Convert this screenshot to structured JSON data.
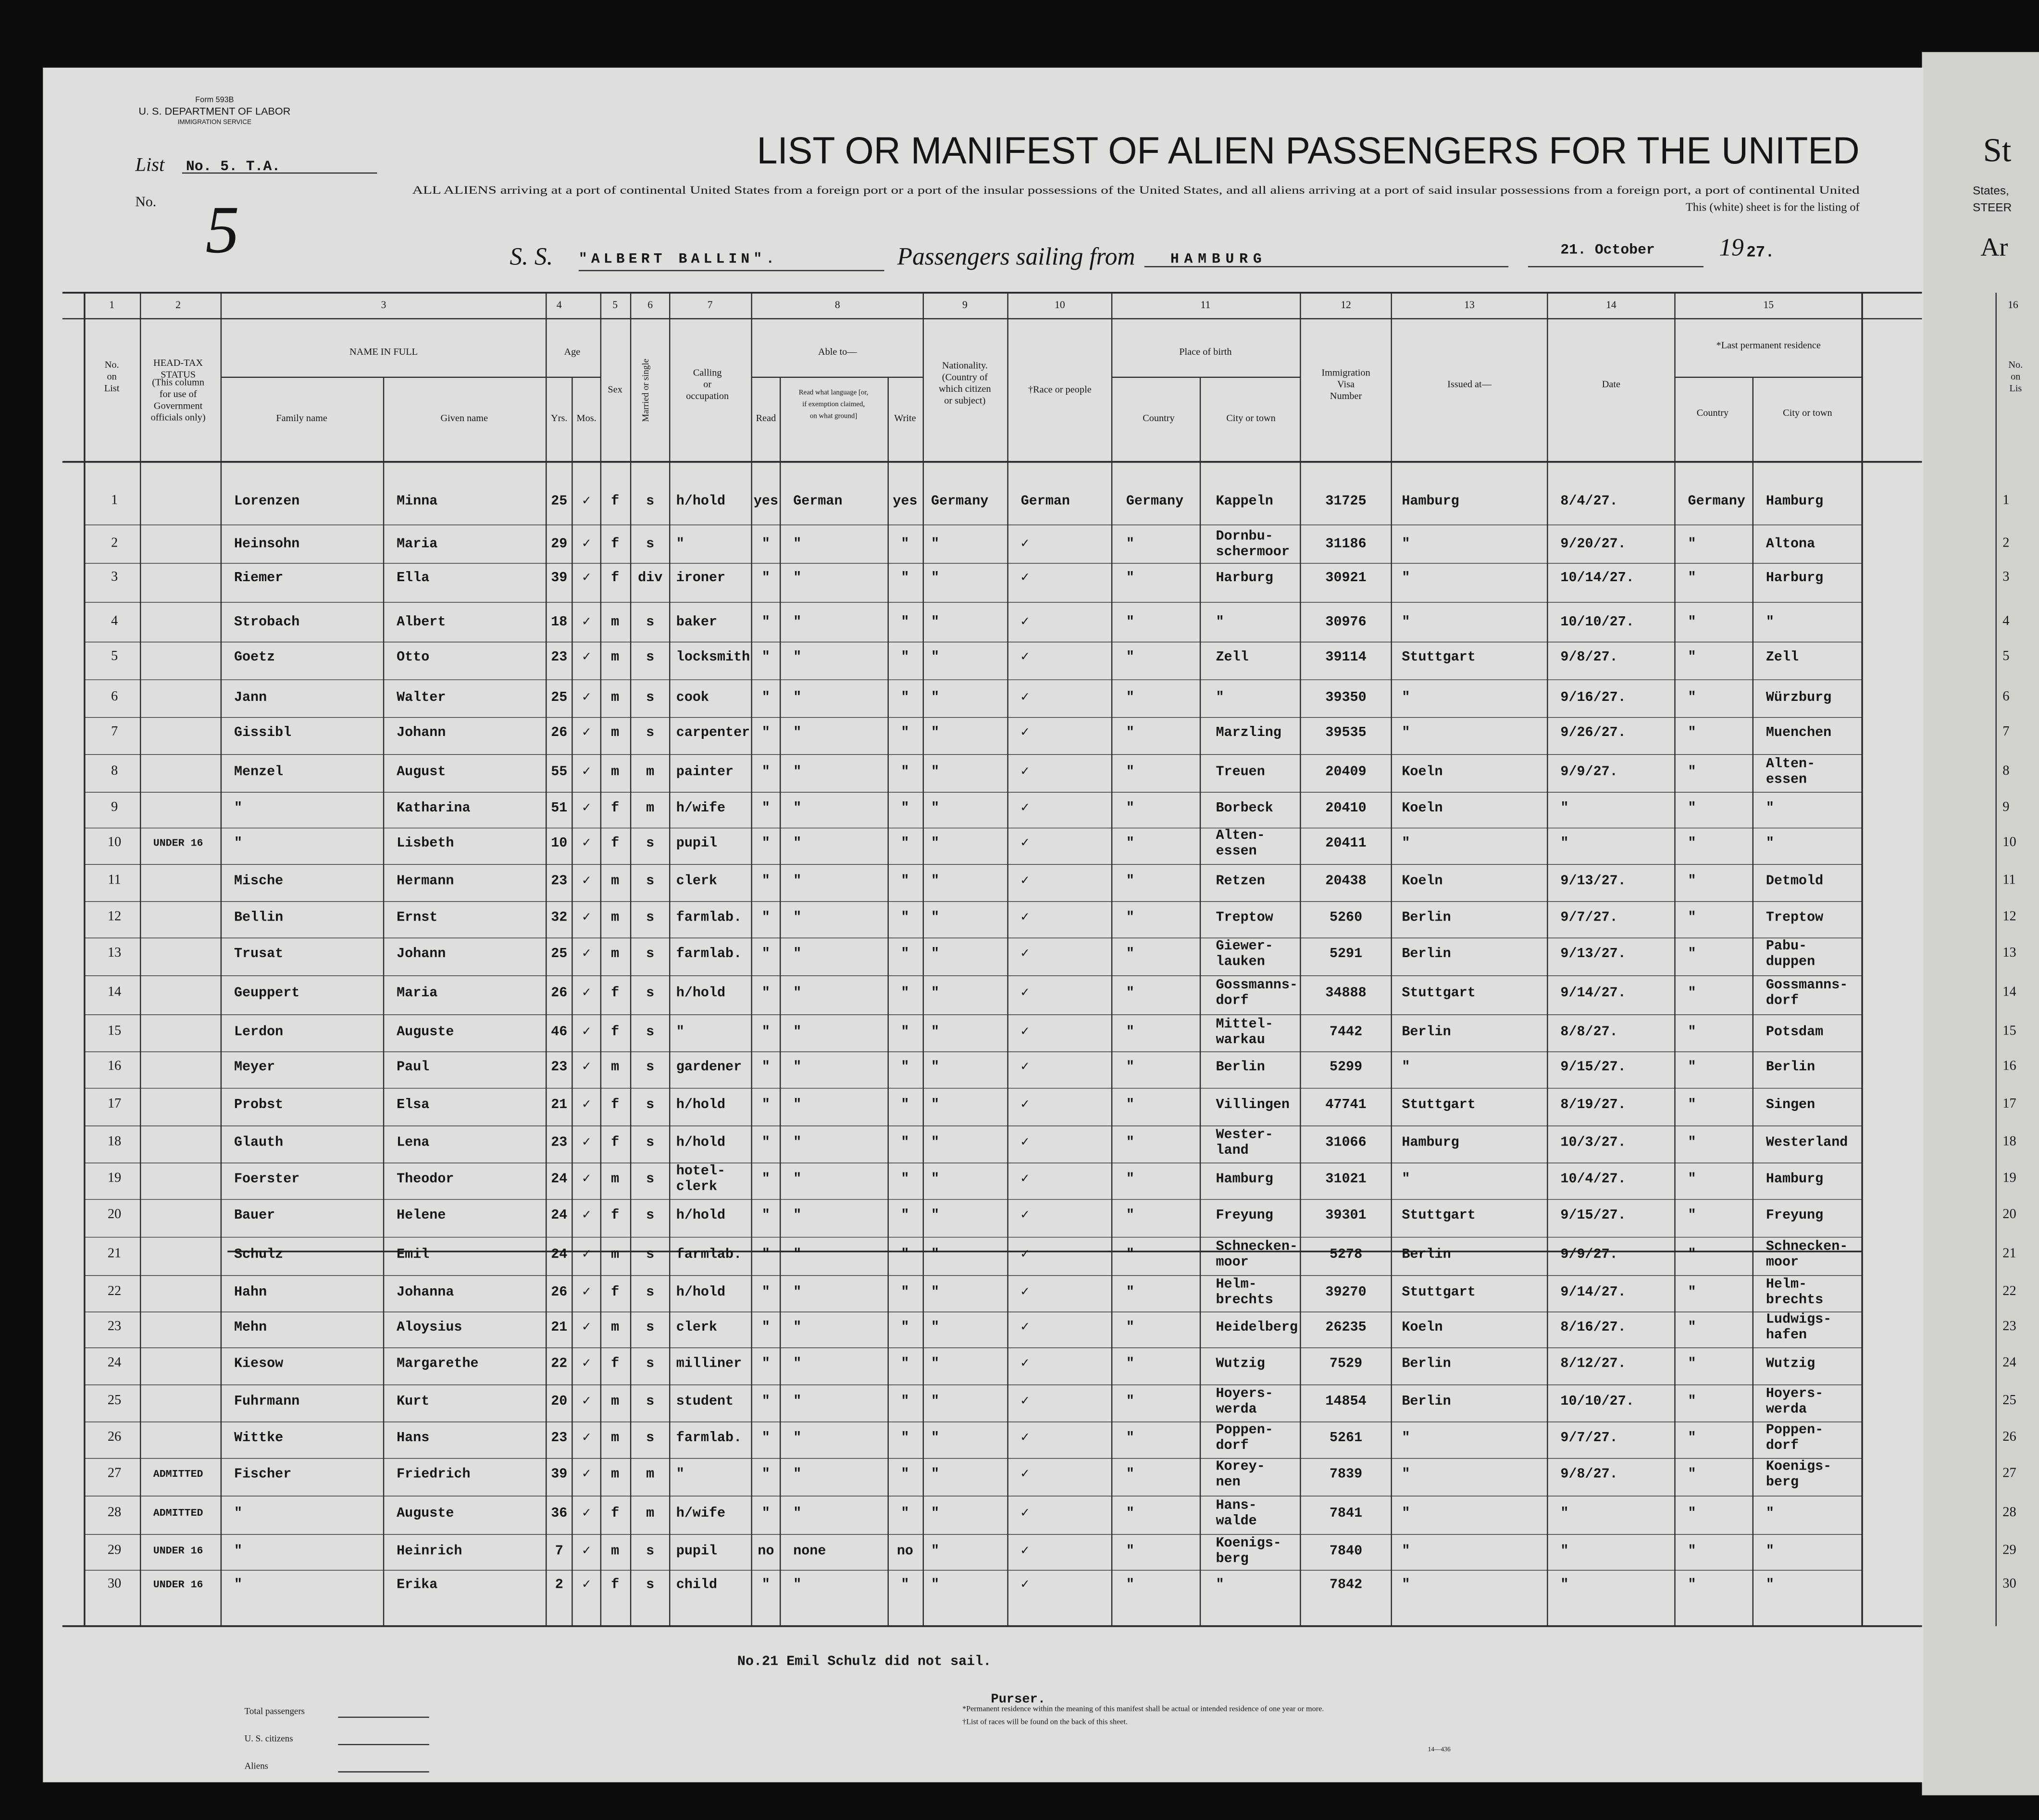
{
  "header": {
    "form": "Form 593B",
    "department": "U. S. DEPARTMENT OF LABOR",
    "service": "IMMIGRATION SERVICE",
    "list_label": "List",
    "list_no": "No. 5. T.A.",
    "no_label": "No.",
    "no_handwritten": "5",
    "title": "LIST OR MANIFEST OF ALIEN PASSENGERS FOR THE UNITED",
    "instructions": "ALL ALIENS arriving at a port of continental United States from a foreign port or a port of the insular possessions of the United States, and all aliens arriving at a port of said insular possessions from a foreign port, a port of continental United",
    "sheet_note": "This (white) sheet is for the listing of",
    "ss": "S. S.",
    "ship": "\"ALBERT BALLIN\".",
    "sailing": "Passengers sailing from",
    "port": "HAMBURG",
    "date": "21. October",
    "year_prefix": "19",
    "year": "27.",
    "next_page": [
      "St",
      "States,",
      "STEER",
      "Ar"
    ]
  },
  "column_numbers": [
    "1",
    "2",
    "3",
    "4",
    "5",
    "6",
    "7",
    "8",
    "9",
    "10",
    "11",
    "12",
    "13",
    "14",
    "15",
    "16"
  ],
  "column_labels": [
    [
      "No.",
      "on",
      "List"
    ],
    [
      "HEAD-TAX",
      "STATUS"
    ],
    [
      "(This column",
      "for use of",
      "Government",
      "officials only)"
    ],
    [
      "NAME IN FULL"
    ],
    [
      "Family name"
    ],
    [
      "Given name"
    ],
    [
      "Age"
    ],
    [
      "Yrs."
    ],
    [
      "Mos."
    ],
    [
      "Sex"
    ],
    [
      "Married or single"
    ],
    [
      "Calling",
      "or",
      "occupation"
    ],
    [
      "Able to—"
    ],
    [
      "Read"
    ],
    [
      "Read what language [or,",
      "if exemption claimed,",
      "on what ground]"
    ],
    [
      "Write"
    ],
    [
      "Nationality.",
      "(Country of",
      "which citizen",
      "or subject)"
    ],
    [
      "†Race or people"
    ],
    [
      "Place of birth"
    ],
    [
      "Country"
    ],
    [
      "City or town"
    ],
    [
      "Immigration",
      "Visa",
      "Number"
    ],
    [
      "Issued at—"
    ],
    [
      "Date"
    ],
    [
      "*Last permanent residence"
    ],
    [
      "Country"
    ],
    [
      "City or town"
    ],
    [
      "No.",
      "on",
      "Lis"
    ]
  ],
  "rows": [
    [
      "1",
      "",
      "Lorenzen",
      "Minna",
      "25",
      "✓",
      "f",
      "s",
      "h/hold",
      "yes",
      "German",
      "yes",
      "Germany",
      "German",
      "Germany",
      "Kappeln",
      "31725",
      "Hamburg",
      "8/4/27.",
      "Germany",
      "Hamburg"
    ],
    [
      "2",
      "",
      "Heinsohn",
      "Maria",
      "29",
      "✓",
      "f",
      "s",
      "\"",
      "\"",
      "\"",
      "\"",
      "\"",
      "✓",
      "\"",
      [
        "Dornbu-",
        "schermoor"
      ],
      "31186",
      "\"",
      "9/20/27.",
      "\"",
      "Altona"
    ],
    [
      "3",
      "",
      "Riemer",
      "Ella",
      "39",
      "✓",
      "f",
      "div",
      "ironer",
      "\"",
      "\"",
      "\"",
      "\"",
      "✓",
      "\"",
      "Harburg",
      "30921",
      "\"",
      "10/14/27.",
      "\"",
      "Harburg"
    ],
    [
      "4",
      "",
      "Strobach",
      "Albert",
      "18",
      "✓",
      "m",
      "s",
      "baker",
      "\"",
      "\"",
      "\"",
      "\"",
      "✓",
      "\"",
      "\"",
      "30976",
      "\"",
      "10/10/27.",
      "\"",
      "\""
    ],
    [
      "5",
      "",
      "Goetz",
      "Otto",
      "23",
      "✓",
      "m",
      "s",
      "locksmith",
      "\"",
      "\"",
      "\"",
      "\"",
      "✓",
      "\"",
      "Zell",
      "39114",
      "Stuttgart",
      "9/8/27.",
      "\"",
      "Zell"
    ],
    [
      "6",
      "",
      "Jann",
      "Walter",
      "25",
      "✓",
      "m",
      "s",
      "cook",
      "\"",
      "\"",
      "\"",
      "\"",
      "✓",
      "\"",
      "\"",
      "39350",
      "\"",
      "9/16/27.",
      "\"",
      "Würzburg"
    ],
    [
      "7",
      "",
      "Gissibl",
      "Johann",
      "26",
      "✓",
      "m",
      "s",
      "carpenter",
      "\"",
      "\"",
      "\"",
      "\"",
      "✓",
      "\"",
      "Marzling",
      "39535",
      "\"",
      "9/26/27.",
      "\"",
      "Muenchen"
    ],
    [
      "8",
      "",
      "Menzel",
      "August",
      "55",
      "✓",
      "m",
      "m",
      "painter",
      "\"",
      "\"",
      "\"",
      "\"",
      "✓",
      "\"",
      "Treuen",
      "20409",
      "Koeln",
      "9/9/27.",
      "\"",
      [
        "Alten-",
        "essen"
      ]
    ],
    [
      "9",
      "",
      "\"",
      "Katharina",
      "51",
      "✓",
      "f",
      "m",
      "h/wife",
      "\"",
      "\"",
      "\"",
      "\"",
      "✓",
      "\"",
      "Borbeck",
      "20410",
      "Koeln",
      "\"",
      "\"",
      "\""
    ],
    [
      "10",
      "UNDER 16",
      "\"",
      "Lisbeth",
      "10",
      "✓",
      "f",
      "s",
      "pupil",
      "\"",
      "\"",
      "\"",
      "\"",
      "✓",
      "\"",
      [
        "Alten-",
        "essen"
      ],
      "20411",
      "\"",
      "\"",
      "\"",
      "\""
    ],
    [
      "11",
      "",
      "Mische",
      "Hermann",
      "23",
      "✓",
      "m",
      "s",
      "clerk",
      "\"",
      "\"",
      "\"",
      "\"",
      "✓",
      "\"",
      "Retzen",
      "20438",
      "Koeln",
      "9/13/27.",
      "\"",
      "Detmold"
    ],
    [
      "12",
      "",
      "Bellin",
      "Ernst",
      "32",
      "✓",
      "m",
      "s",
      "farmlab.",
      "\"",
      "\"",
      "\"",
      "\"",
      "✓",
      "\"",
      "Treptow",
      "5260",
      "Berlin",
      "9/7/27.",
      "\"",
      "Treptow"
    ],
    [
      "13",
      "",
      "Trusat",
      "Johann",
      "25",
      "✓",
      "m",
      "s",
      "farmlab.",
      "\"",
      "\"",
      "\"",
      "\"",
      "✓",
      "\"",
      [
        "Giewer-",
        "lauken"
      ],
      "5291",
      "Berlin",
      "9/13/27.",
      "\"",
      [
        "Pabu-",
        "duppen"
      ]
    ],
    [
      "14",
      "",
      "Geuppert",
      "Maria",
      "26",
      "✓",
      "f",
      "s",
      "h/hold",
      "\"",
      "\"",
      "\"",
      "\"",
      "✓",
      "\"",
      [
        "Gossmanns-",
        "dorf"
      ],
      "34888",
      "Stuttgart",
      "9/14/27.",
      "\"",
      [
        "Gossmanns-",
        "dorf"
      ]
    ],
    [
      "15",
      "",
      "Lerdon",
      "Auguste",
      "46",
      "✓",
      "f",
      "s",
      "\"",
      "\"",
      "\"",
      "\"",
      "\"",
      "✓",
      "\"",
      [
        "Mittel-",
        "warkau"
      ],
      "7442",
      "Berlin",
      "8/8/27.",
      "\"",
      "Potsdam"
    ],
    [
      "16",
      "",
      "Meyer",
      "Paul",
      "23",
      "✓",
      "m",
      "s",
      "gardener",
      "\"",
      "\"",
      "\"",
      "\"",
      "✓",
      "\"",
      "Berlin",
      "5299",
      "\"",
      "9/15/27.",
      "\"",
      "Berlin"
    ],
    [
      "17",
      "",
      "Probst",
      "Elsa",
      "21",
      "✓",
      "f",
      "s",
      "h/hold",
      "\"",
      "\"",
      "\"",
      "\"",
      "✓",
      "\"",
      "Villingen",
      "47741",
      "Stuttgart",
      "8/19/27.",
      "\"",
      "Singen"
    ],
    [
      "18",
      "",
      "Glauth",
      "Lena",
      "23",
      "✓",
      "f",
      "s",
      "h/hold",
      "\"",
      "\"",
      "\"",
      "\"",
      "✓",
      "\"",
      [
        "Wester-",
        "land"
      ],
      "31066",
      "Hamburg",
      "10/3/27.",
      "\"",
      "Westerland"
    ],
    [
      "19",
      "",
      "Foerster",
      "Theodor",
      "24",
      "✓",
      "m",
      "s",
      [
        "hotel-",
        "clerk"
      ],
      "\"",
      "\"",
      "\"",
      "\"",
      "✓",
      "\"",
      "Hamburg",
      "31021",
      "\"",
      "10/4/27.",
      "\"",
      "Hamburg"
    ],
    [
      "20",
      "",
      "Bauer",
      "Helene",
      "24",
      "✓",
      "f",
      "s",
      "h/hold",
      "\"",
      "\"",
      "\"",
      "\"",
      "✓",
      "\"",
      "Freyung",
      "39301",
      "Stuttgart",
      "9/15/27.",
      "\"",
      "Freyung"
    ],
    [
      "21",
      "",
      "Schulz",
      "Emil",
      "24",
      "✓",
      "m",
      "s",
      "farmlab.",
      "\"",
      "\"",
      "\"",
      "\"",
      "✓",
      "\"",
      [
        "Schnecken-",
        "moor"
      ],
      "5278",
      "Berlin",
      "9/9/27.",
      "\"",
      [
        "Schnecken-",
        "moor"
      ]
    ],
    [
      "22",
      "",
      "Hahn",
      "Johanna",
      "26",
      "✓",
      "f",
      "s",
      "h/hold",
      "\"",
      "\"",
      "\"",
      "\"",
      "✓",
      "\"",
      [
        "Helm-",
        "brechts"
      ],
      "39270",
      "Stuttgart",
      "9/14/27.",
      "\"",
      [
        "Helm-",
        "brechts"
      ]
    ],
    [
      "23",
      "",
      "Mehn",
      "Aloysius",
      "21",
      "✓",
      "m",
      "s",
      "clerk",
      "\"",
      "\"",
      "\"",
      "\"",
      "✓",
      "\"",
      "Heidelberg",
      "26235",
      "Koeln",
      "8/16/27.",
      "\"",
      [
        "Ludwigs-",
        "hafen"
      ]
    ],
    [
      "24",
      "",
      "Kiesow",
      "Margarethe",
      "22",
      "✓",
      "f",
      "s",
      "milliner",
      "\"",
      "\"",
      "\"",
      "\"",
      "✓",
      "\"",
      "Wutzig",
      "7529",
      "Berlin",
      "8/12/27.",
      "\"",
      "Wutzig"
    ],
    [
      "25",
      "",
      "Fuhrmann",
      "Kurt",
      "20",
      "✓",
      "m",
      "s",
      "student",
      "\"",
      "\"",
      "\"",
      "\"",
      "✓",
      "\"",
      [
        "Hoyers-",
        "werda"
      ],
      "14854",
      "Berlin",
      "10/10/27.",
      "\"",
      [
        "Hoyers-",
        "werda"
      ]
    ],
    [
      "26",
      "",
      "Wittke",
      "Hans",
      "23",
      "✓",
      "m",
      "s",
      "farmlab.",
      "\"",
      "\"",
      "\"",
      "\"",
      "✓",
      "\"",
      [
        "Poppen-",
        "dorf"
      ],
      "5261",
      "\"",
      "9/7/27.",
      "\"",
      [
        "Poppen-",
        "dorf"
      ]
    ],
    [
      "27",
      "ADMITTED",
      "Fischer",
      "Friedrich",
      "39",
      "✓",
      "m",
      "m",
      "\"",
      "\"",
      "\"",
      "\"",
      "\"",
      "✓",
      "\"",
      [
        "Korey-",
        "nen"
      ],
      "7839",
      "\"",
      "9/8/27.",
      "\"",
      [
        "Koenigs-",
        "berg"
      ]
    ],
    [
      "28",
      "ADMITTED",
      "\"",
      "Auguste",
      "36",
      "✓",
      "f",
      "m",
      "h/wife",
      "\"",
      "\"",
      "\"",
      "\"",
      "✓",
      "\"",
      [
        "Hans-",
        "walde"
      ],
      "7841",
      "\"",
      "\"",
      "\"",
      "\""
    ],
    [
      "29",
      "UNDER 16",
      "\"",
      "Heinrich",
      "7",
      "✓",
      "m",
      "s",
      "pupil",
      "no",
      "none",
      "no",
      "\"",
      "✓",
      "\"",
      [
        "Koenigs-",
        "berg"
      ],
      "7840",
      "\"",
      "\"",
      "\"",
      "\""
    ],
    [
      "30",
      "UNDER 16",
      "\"",
      "Erika",
      "2",
      "✓",
      "f",
      "s",
      "child",
      "\"",
      "\"",
      "\"",
      "\"",
      "✓",
      "\"",
      "\"",
      "7842",
      "\"",
      "\"",
      "\"",
      "\""
    ]
  ],
  "footer": {
    "note": "No.21 Emil Schulz did not sail.",
    "purser": "Purser.",
    "footnote_residence": "*Permanent residence within the meaning of this manifest shall be actual or intended residence of one year or more.",
    "footnote_races": "†List of races will be found on the back of this sheet.",
    "totals": [
      "Total passengers",
      "U. S. citizens",
      "Aliens"
    ],
    "form_code": "14—436"
  }
}
